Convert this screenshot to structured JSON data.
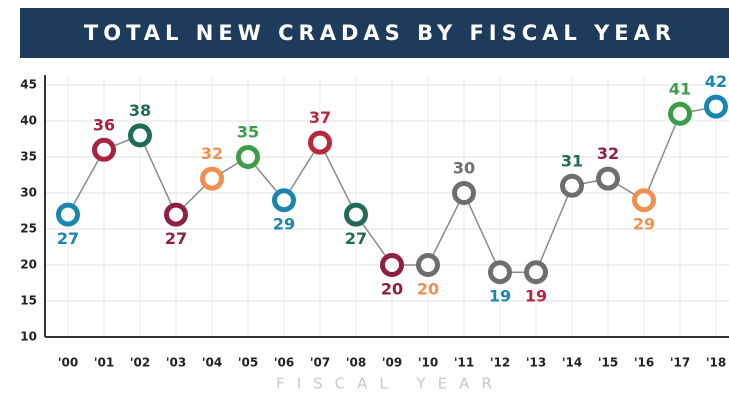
{
  "chart_data": {
    "type": "line",
    "title": "TOTAL NEW CRADAS BY FISCAL YEAR",
    "x_label": "FISCAL YEAR",
    "categories": [
      "'00",
      "'01",
      "'02",
      "'03",
      "'04",
      "'05",
      "'06",
      "'07",
      "'08",
      "'09",
      "'10",
      "'11",
      "'12",
      "'13",
      "'14",
      "'15",
      "'16",
      "'17",
      "'18"
    ],
    "values": [
      27,
      36,
      38,
      27,
      32,
      35,
      29,
      37,
      27,
      20,
      20,
      30,
      19,
      19,
      31,
      32,
      29,
      41,
      42
    ],
    "line_color": "#8a8a8a",
    "marker_colors": [
      "#1a86b0",
      "#a8233f",
      "#1e6b57",
      "#8e2143",
      "#ee9150",
      "#3c9c4a",
      "#1a86b0",
      "#b8283c",
      "#1e6b57",
      "#8e2143",
      "#6e6e6e",
      "#6e6e6e",
      "#6e6e6e",
      "#6e6e6e",
      "#6e6e6e",
      "#6e6e6e",
      "#ee9150",
      "#3c9c4a",
      "#1a86b0"
    ],
    "label_colors": [
      "#1a86b0",
      "#a8233f",
      "#1e6b57",
      "#8e2143",
      "#ee9150",
      "#3c9c4a",
      "#1a86b0",
      "#b8283c",
      "#1e6b57",
      "#8e2143",
      "#ee9150",
      "#6e6e6e",
      "#1a86b0",
      "#b8283c",
      "#1e6b57",
      "#8e2143",
      "#ee9150",
      "#3c9c4a",
      "#1a86b0"
    ],
    "ylim": [
      10,
      45
    ],
    "yticks": [
      10,
      15,
      20,
      25,
      30,
      35,
      40,
      45
    ],
    "grid": true
  }
}
